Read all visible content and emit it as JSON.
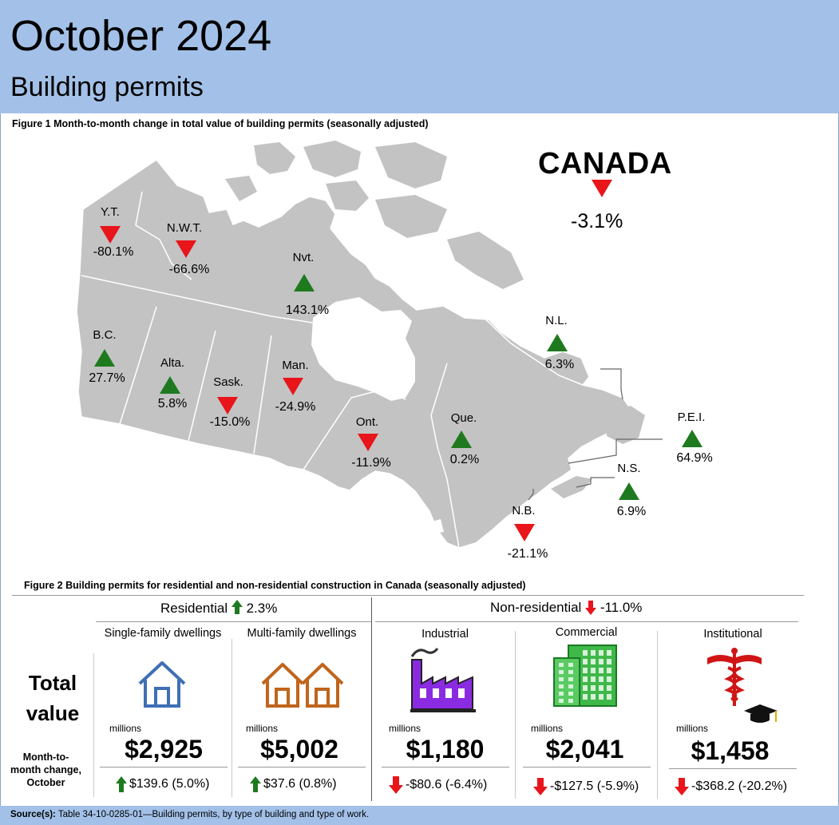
{
  "header": {
    "title": "October 2024",
    "subtitle": "Building permits"
  },
  "figure1": {
    "title": "Figure 1  Month-to-month change in total value of building permits (seasonally adjusted)",
    "canada": {
      "label": "CANADA",
      "value": "-3.1%",
      "direction": "down"
    },
    "regions": [
      {
        "id": "yt",
        "label": "Y.T.",
        "value": "-80.1%",
        "direction": "down"
      },
      {
        "id": "nwt",
        "label": "N.W.T.",
        "value": "-66.6%",
        "direction": "down"
      },
      {
        "id": "nvt",
        "label": "Nvt.",
        "value": "143.1%",
        "direction": "up"
      },
      {
        "id": "bc",
        "label": "B.C.",
        "value": "27.7%",
        "direction": "up"
      },
      {
        "id": "alta",
        "label": "Alta.",
        "value": "5.8%",
        "direction": "up"
      },
      {
        "id": "sask",
        "label": "Sask.",
        "value": "-15.0%",
        "direction": "down"
      },
      {
        "id": "man",
        "label": "Man.",
        "value": "-24.9%",
        "direction": "down"
      },
      {
        "id": "ont",
        "label": "Ont.",
        "value": "-11.9%",
        "direction": "down"
      },
      {
        "id": "que",
        "label": "Que.",
        "value": "0.2%",
        "direction": "up"
      },
      {
        "id": "nl",
        "label": "N.L.",
        "value": "6.3%",
        "direction": "up"
      },
      {
        "id": "pei",
        "label": "P.E.I.",
        "value": "64.9%",
        "direction": "up"
      },
      {
        "id": "ns",
        "label": "N.S.",
        "value": "6.9%",
        "direction": "up"
      },
      {
        "id": "nb",
        "label": "N.B.",
        "value": "-21.1%",
        "direction": "down"
      }
    ]
  },
  "figure2": {
    "title": "Figure 2  Building permits for residential and non-residential construction in Canada (seasonally adjusted)",
    "residential": {
      "label": "Residential",
      "change": "2.3%",
      "direction": "up"
    },
    "non_residential": {
      "label": "Non-residential",
      "change": "-11.0%",
      "direction": "down"
    },
    "row_total_line1": "Total",
    "row_total_line2": "value",
    "row_change_line1": "Month-to-",
    "row_change_line2": "month change,",
    "row_change_line3": "October",
    "unit": "millions",
    "columns": [
      {
        "label": "Single-family dwellings",
        "icon": "house-icon",
        "value": "$2,925",
        "change": "$139.6 (5.0%)",
        "direction": "up"
      },
      {
        "label": "Multi-family dwellings",
        "icon": "double-house-icon",
        "value": "$5,002",
        "change": "$37.6 (0.8%)",
        "direction": "up"
      },
      {
        "label": "Industrial",
        "icon": "factory-icon",
        "value": "$1,180",
        "change": "-$80.6 (-6.4%)",
        "direction": "down"
      },
      {
        "label": "Commercial",
        "icon": "office-building-icon",
        "value": "$2,041",
        "change": "-$127.5 (-5.9%)",
        "direction": "down"
      },
      {
        "label": "Institutional",
        "icon": "caduceus-graduation-cap-icon",
        "value": "$1,458",
        "change": "-$368.2 (-20.2%)",
        "direction": "down"
      }
    ]
  },
  "source": {
    "label": "Source(s):",
    "text": " Table 34-10-0285-01—Building permits, by type of building and type of work."
  },
  "colors": {
    "header_bg": "#a3c1e8",
    "up": "#1f7a1f",
    "down": "#e8151b",
    "land": "#c3c3c3",
    "house_single": "#3f6fb5",
    "house_multi": "#c0651c",
    "factory": "#8a2be2",
    "commercial": "#3fb84a",
    "medical": "#d01515"
  }
}
